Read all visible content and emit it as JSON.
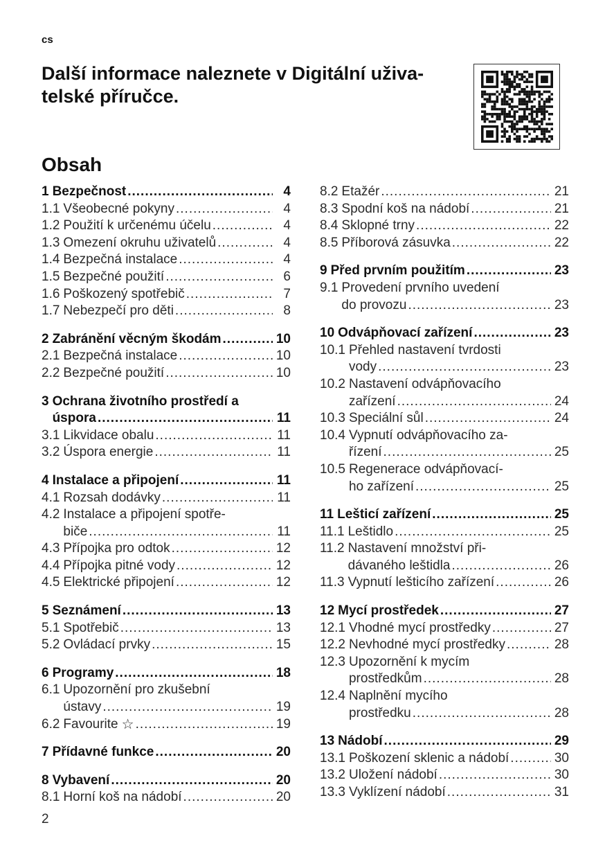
{
  "lang": "cs",
  "title_lines": [
    "Další informace naleznete v Digitální uživa-",
    "telské příručce."
  ],
  "toc_title": "Obsah",
  "page_number": "2",
  "qr_icon": "qr-code",
  "columns": [
    [
      {
        "num": "1",
        "lines": [
          "Bezpečnost"
        ],
        "page": "4",
        "items": [
          {
            "num": "1.1",
            "lines": [
              "Všeobecné pokyny"
            ],
            "page": "4"
          },
          {
            "num": "1.2",
            "lines": [
              "Použití k určenému účelu"
            ],
            "page": "4"
          },
          {
            "num": "1.3",
            "lines": [
              "Omezení okruhu uživatelů"
            ],
            "page": "4"
          },
          {
            "num": "1.4",
            "lines": [
              "Bezpečná instalace"
            ],
            "page": "4"
          },
          {
            "num": "1.5",
            "lines": [
              "Bezpečné použití"
            ],
            "page": "6"
          },
          {
            "num": "1.6",
            "lines": [
              "Poškozený spotřebič"
            ],
            "page": "7"
          },
          {
            "num": "1.7",
            "lines": [
              "Nebezpečí pro děti"
            ],
            "page": "8"
          }
        ]
      },
      {
        "num": "2",
        "lines": [
          "Zabránění věcným škodám"
        ],
        "page": "10",
        "items": [
          {
            "num": "2.1",
            "lines": [
              "Bezpečná instalace"
            ],
            "page": "10"
          },
          {
            "num": "2.2",
            "lines": [
              "Bezpečné použití"
            ],
            "page": "10"
          }
        ]
      },
      {
        "num": "3",
        "lines": [
          "Ochrana životního prostředí a",
          "úspora"
        ],
        "page": "11",
        "items": [
          {
            "num": "3.1",
            "lines": [
              "Likvidace obalu"
            ],
            "page": "11"
          },
          {
            "num": "3.2",
            "lines": [
              "Úspora energie"
            ],
            "page": "11"
          }
        ]
      },
      {
        "num": "4",
        "lines": [
          "Instalace a připojení"
        ],
        "page": "11",
        "items": [
          {
            "num": "4.1",
            "lines": [
              "Rozsah dodávky"
            ],
            "page": "11"
          },
          {
            "num": "4.2",
            "lines": [
              "Instalace a připojení spotře-",
              "biče"
            ],
            "page": "11"
          },
          {
            "num": "4.3",
            "lines": [
              "Přípojka pro odtok"
            ],
            "page": "12"
          },
          {
            "num": "4.4",
            "lines": [
              "Přípojka pitné vody"
            ],
            "page": "12"
          },
          {
            "num": "4.5",
            "lines": [
              "Elektrické připojení"
            ],
            "page": "12"
          }
        ]
      },
      {
        "num": "5",
        "lines": [
          "Seznámení"
        ],
        "page": "13",
        "items": [
          {
            "num": "5.1",
            "lines": [
              "Spotřebič"
            ],
            "page": "13"
          },
          {
            "num": "5.2",
            "lines": [
              "Ovládací prvky"
            ],
            "page": "15"
          }
        ]
      },
      {
        "num": "6",
        "lines": [
          "Programy"
        ],
        "page": "18",
        "items": [
          {
            "num": "6.1",
            "lines": [
              "Upozornění pro zkušební",
              "ústavy"
            ],
            "page": "19"
          },
          {
            "num": "6.2",
            "lines": [
              "Favourite"
            ],
            "page": "19",
            "icon": "star"
          }
        ]
      },
      {
        "num": "7",
        "lines": [
          "Přídavné funkce"
        ],
        "page": "20",
        "items": []
      },
      {
        "num": "8",
        "lines": [
          "Vybavení"
        ],
        "page": "20",
        "items": [
          {
            "num": "8.1",
            "lines": [
              "Horní koš na nádobí"
            ],
            "page": "20"
          }
        ]
      }
    ],
    [
      {
        "items": [
          {
            "num": "8.2",
            "lines": [
              "Etažér"
            ],
            "page": "21"
          },
          {
            "num": "8.3",
            "lines": [
              "Spodní koš na nádobí"
            ],
            "page": "21"
          },
          {
            "num": "8.4",
            "lines": [
              "Sklopné trny"
            ],
            "page": "22"
          },
          {
            "num": "8.5",
            "lines": [
              "Příborová zásuvka"
            ],
            "page": "22"
          }
        ]
      },
      {
        "num": "9",
        "lines": [
          "Před prvním použitím"
        ],
        "page": "23",
        "items": [
          {
            "num": "9.1",
            "lines": [
              "Provedení prvního uvedení",
              "do provozu"
            ],
            "page": "23"
          }
        ]
      },
      {
        "num": "10",
        "lines": [
          "Odvápňovací zařízení"
        ],
        "page": "23",
        "items": [
          {
            "num": "10.1",
            "lines": [
              "Přehled nastavení tvrdosti",
              "vody"
            ],
            "page": "23"
          },
          {
            "num": "10.2",
            "lines": [
              "Nastavení odvápňovacího",
              "zařízení"
            ],
            "page": "24"
          },
          {
            "num": "10.3",
            "lines": [
              "Speciální sůl"
            ],
            "page": "24"
          },
          {
            "num": "10.4",
            "lines": [
              "Vypnutí odvápňovacího za-",
              "řízení"
            ],
            "page": "25"
          },
          {
            "num": "10.5",
            "lines": [
              "Regenerace odvápňovací-",
              "ho zařízení"
            ],
            "page": "25"
          }
        ]
      },
      {
        "num": "11",
        "lines": [
          "Lešticí zařízení"
        ],
        "page": "25",
        "items": [
          {
            "num": "11.1",
            "lines": [
              "Leštidlo"
            ],
            "page": "25"
          },
          {
            "num": "11.2",
            "lines": [
              "Nastavení množství při-",
              "dávaného leštidla"
            ],
            "page": "26"
          },
          {
            "num": "11.3",
            "lines": [
              "Vypnutí lešticího zařízení"
            ],
            "page": "26"
          }
        ]
      },
      {
        "num": "12",
        "lines": [
          "Mycí prostředek"
        ],
        "page": "27",
        "items": [
          {
            "num": "12.1",
            "lines": [
              "Vhodné mycí prostředky"
            ],
            "page": "27"
          },
          {
            "num": "12.2",
            "lines": [
              "Nevhodné mycí prostředky"
            ],
            "page": "28"
          },
          {
            "num": "12.3",
            "lines": [
              "Upozornění k mycím",
              "prostředkům"
            ],
            "page": "28"
          },
          {
            "num": "12.4",
            "lines": [
              "Naplnění mycího",
              "prostředku"
            ],
            "page": "28"
          }
        ]
      },
      {
        "num": "13",
        "lines": [
          "Nádobí"
        ],
        "page": "29",
        "items": [
          {
            "num": "13.1",
            "lines": [
              "Poškození sklenic a nádobí"
            ],
            "page": "30"
          },
          {
            "num": "13.2",
            "lines": [
              "Uložení nádobí"
            ],
            "page": "30"
          },
          {
            "num": "13.3",
            "lines": [
              "Vyklízení nádobí"
            ],
            "page": "31"
          }
        ]
      }
    ]
  ]
}
